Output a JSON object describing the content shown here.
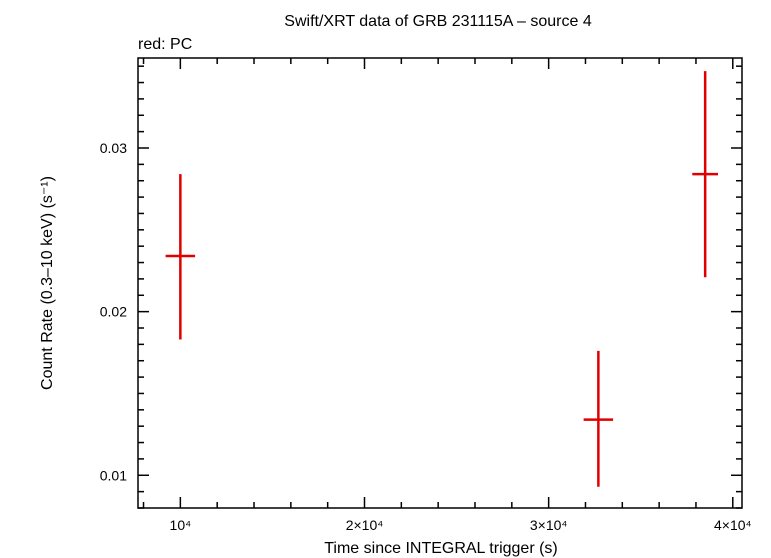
{
  "chart_data": {
    "type": "scatter",
    "title": "Swift/XRT data of GRB 231115A – source 4",
    "subtitle": "red: PC",
    "xlabel": "Time since INTEGRAL trigger (s)",
    "ylabel": "Count Rate (0.3–10 keV) (s⁻¹)",
    "xlim": [
      7700,
      40500
    ],
    "ylim": [
      0.008,
      0.0355
    ],
    "x_ticks": [
      {
        "value": 10000,
        "label": "10⁴"
      },
      {
        "value": 20000,
        "label": "2×10⁴"
      },
      {
        "value": 30000,
        "label": "3×10⁴"
      },
      {
        "value": 40000,
        "label": "4×10⁴"
      }
    ],
    "y_ticks": [
      {
        "value": 0.01,
        "label": "0.01"
      },
      {
        "value": 0.02,
        "label": "0.02"
      },
      {
        "value": 0.03,
        "label": "0.03"
      }
    ],
    "grid": false,
    "series": [
      {
        "color": "#e00000",
        "points": [
          {
            "x": 10000,
            "xerr": [
              800,
              800
            ],
            "y": 0.0234,
            "yerr_low": 0.0051,
            "yerr_high": 0.005
          },
          {
            "x": 32700,
            "xerr": [
              800,
              800
            ],
            "y": 0.0134,
            "yerr_low": 0.0041,
            "yerr_high": 0.0042
          },
          {
            "x": 38500,
            "xerr": [
              700,
              700
            ],
            "y": 0.0284,
            "yerr_low": 0.0063,
            "yerr_high": 0.0063
          }
        ]
      }
    ]
  }
}
